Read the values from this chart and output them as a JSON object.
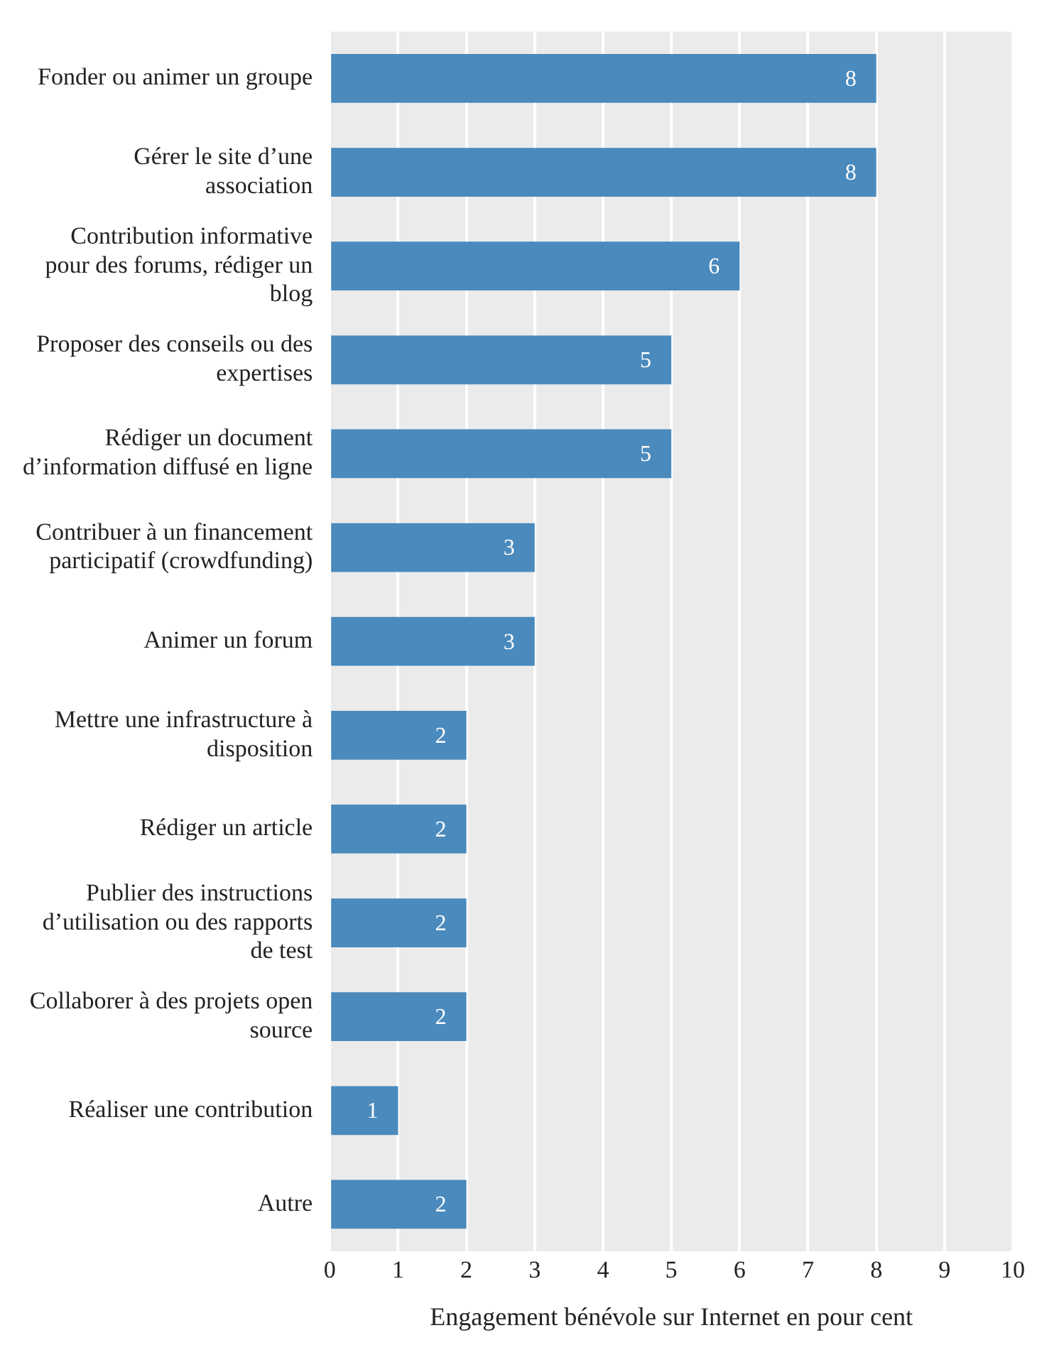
{
  "chart_data": {
    "type": "bar",
    "orientation": "horizontal",
    "categories": [
      "Fonder ou animer un groupe",
      "Gérer le site d’une association",
      "Contribution informative pour des forums, rédiger un blog",
      "Proposer des conseils ou des expertises",
      "Rédiger un document d’information diffusé en ligne",
      "Contribuer à un financement participatif (crowdfunding)",
      "Animer un forum",
      "Mettre une infrastructure à disposition",
      "Rédiger un article",
      "Publier des instructions d’utilisation ou des rapports de test",
      "Collaborer à des projets open source",
      "Réaliser une contribution",
      "Autre"
    ],
    "values": [
      8,
      8,
      6,
      5,
      5,
      3,
      3,
      2,
      2,
      2,
      2,
      1,
      2
    ],
    "color": "#4a8abd",
    "xlim": [
      0,
      10
    ],
    "xticks": [
      0,
      1,
      2,
      3,
      4,
      5,
      6,
      7,
      8,
      9,
      10
    ],
    "xlabel": "Engagement bénévole sur Internet en pour cent",
    "grid": "x",
    "data_labels": true,
    "legend": false
  }
}
